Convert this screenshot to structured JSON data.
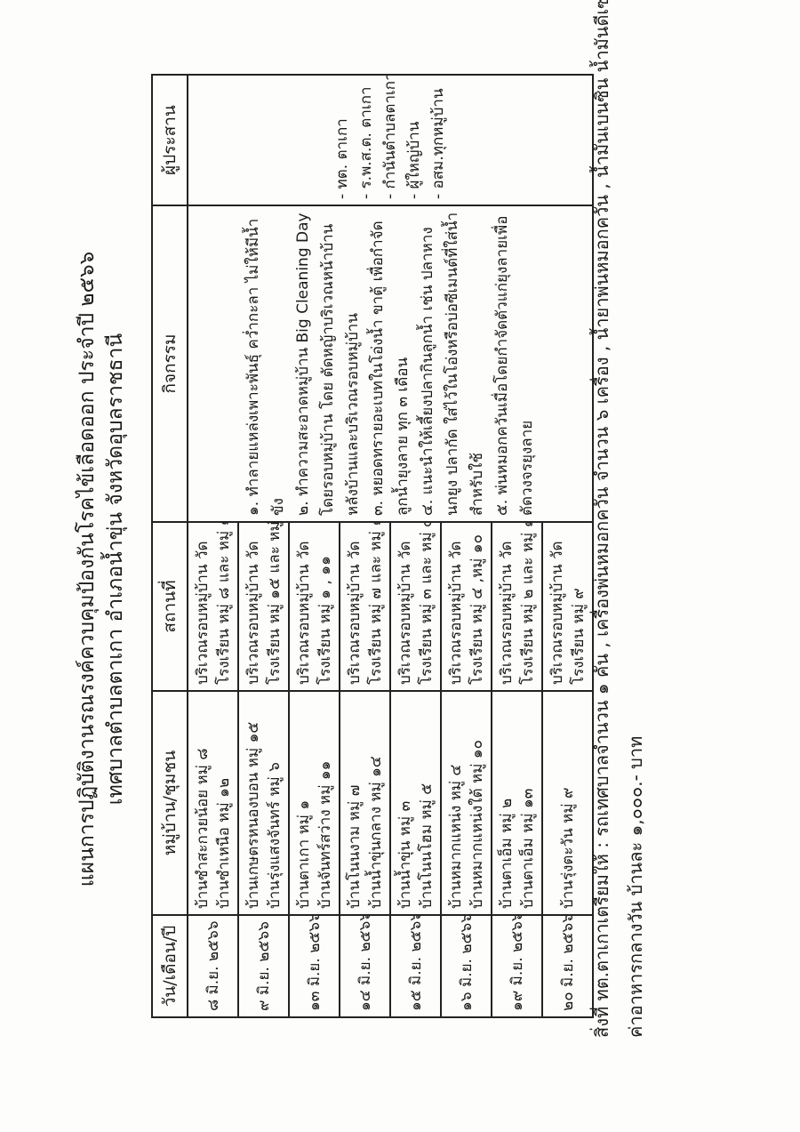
{
  "document": {
    "title_line1": "แผนการปฏิบัติงานรณรงค์ควบคุมป้องกันโรคไข้เลือดออก ประจำปี ๒๕๖๖",
    "title_line2": "เทศบาลตำบลตาเกา อำเภอน้ำขุ่น จังหวัดอุบลราชธานี"
  },
  "table": {
    "headers": [
      "วัน/เดือน/ปี",
      "หมู่บ้าน/ชุมชน",
      "สถานที่",
      "กิจกรรม",
      "ผู้ประสาน"
    ],
    "rows": [
      {
        "date": "๘ มิ.ย. ๒๕๖๖",
        "village_lines": [
          "บ้านซำสะกวยน้อย  หมู่ ๘",
          "บ้านซำเหนือ  หมู่ ๑๒"
        ],
        "place_lines": [
          "บริเวณรอบหมู่บ้าน วัด",
          "โรงเรียน  หมู่ ๘  และ หมู่ ๑๒"
        ]
      },
      {
        "date": "๙ มิ.ย. ๒๕๖๖",
        "village_lines": [
          "บ้านเกษตรหนองบอน หมู่ ๑๕",
          "บ้านรุ่งแสงจันทร์  หมู่ ๖"
        ],
        "place_lines": [
          "บริเวณรอบหมู่บ้าน วัด",
          "โรงเรียน  หมู่ ๑๕ และ หมู่ ๖"
        ]
      },
      {
        "date": "๑๓ มิ.ย. ๒๕๖๖",
        "village_lines": [
          "บ้านตาเกา  หมู่ ๑",
          "บ้านจันทร์สว่าง  หมู่ ๑๑"
        ],
        "place_lines": [
          "บริเวณรอบหมู่บ้าน วัด",
          "โรงเรียน หมู่ ๑ , ๑๑"
        ]
      },
      {
        "date": "๑๔ มิ.ย. ๒๕๖๖",
        "village_lines": [
          "บ้านโนนงาม  หมู่ ๗",
          "บ้านน้ำขุ่นกลาง หมู่ ๑๔"
        ],
        "place_lines": [
          "บริเวณรอบหมู่บ้าน วัด",
          "โรงเรียน หมู่ ๗ และ หมู่ ๑๔"
        ]
      },
      {
        "date": "๑๕ มิ.ย. ๒๕๖๖",
        "village_lines": [
          "บ้านน้ำขุ่น   หมู่ ๓",
          "บ้านโนนโฮม  หมู่ ๕"
        ],
        "place_lines": [
          "บริเวณรอบหมู่บ้าน วัด",
          "โรงเรียน หมู่ ๓ และ หมู่ ๕"
        ]
      },
      {
        "date": "๑๖ มิ.ย. ๒๕๖๖",
        "village_lines": [
          "บ้านหมากแหน่ง   หมู่ ๔",
          "บ้านหมากแหน่งใต้  หมู่ ๑๐"
        ],
        "place_lines": [
          "บริเวณรอบหมู่บ้าน วัด",
          "โรงเรียน หมู่ ๔ ,หมู่ ๑๐"
        ]
      },
      {
        "date": "๑๙ มิ.ย. ๒๕๖๖",
        "village_lines": [
          "บ้านตาเอ็ม  หมู่ ๒",
          "บ้านตาเอ็ม  หมู่ ๑๓"
        ],
        "place_lines": [
          "บริเวณรอบหมู่บ้าน วัด",
          "โรงเรียน หมู่ ๒ และ หมู่ ๑๓"
        ]
      },
      {
        "date": "๒๐ มิ.ย. ๒๕๖๖",
        "village_lines": [
          "บ้านรุ่งตะวัน  หมู่ ๙"
        ],
        "place_lines": [
          "บริเวณรอบหมู่บ้าน วัด",
          "โรงเรียน หมู่ ๙"
        ]
      }
    ],
    "activities_lines": [
      "๑. ทำลายแหล่งเพาะพันธุ์  คว่ำกะลา ไม่ให้มีน้ำ",
      "ขัง",
      "๒. ทำความสะอาดหมู่บ้าน Big Cleaning Day",
      "โดยรอบหมู่บ้าน โดย ตัดหญ้าบริเวณหน้าบ้าน",
      "หลังบ้านและบริเวณรอบหมู่บ้าน",
      "๓. หยอดทรายอะเบทในโอ่งน้ำ ขาตู้ เพื่อกำจัด",
      "ลูกน้ำยุงลาย ทุก ๓ เดือน",
      "๔. แนะนำให้เลี้ยงปลากินลูกน้ำ เช่น ปลาหาง",
      "นกยูง ปลากัด ใส่ไว้ในโอ่งหรือบ่อซีเมนต์ที่ใส่น้ำ",
      "สำหรับใช้",
      "๕. พ่นหมอกควันเมื่อโดยกำจัดตัวแก่ยุงลายเพื่อ",
      "ตัดวงจรยุงลาย"
    ],
    "coordinators": [
      "- ทต. ตาเกา",
      "- ร.พ.ส.ต. ตาเกา",
      "- กำนันตำบลตาเกา",
      "- ผู้ใหญ่บ้าน",
      "- อสม.ทุกหมู่บ้าน"
    ]
  },
  "notes": {
    "line1": "สิ่งที่ ทต.ตาเกาเตรียมให้ : รถเทศบาลจำนวน  ๑  คัน , เครื่องพ่นหมอกควัน  จำนวน ๖ เครื่อง , น้ำยาพ่นหมอกควัน , น้ำมันเบนซิน น้ำมันดีเซลผสมน้ำยา",
    "line2": "ค่าอาหารกลางวัน บ้านละ ๑,๐๐๐.- บาท"
  }
}
